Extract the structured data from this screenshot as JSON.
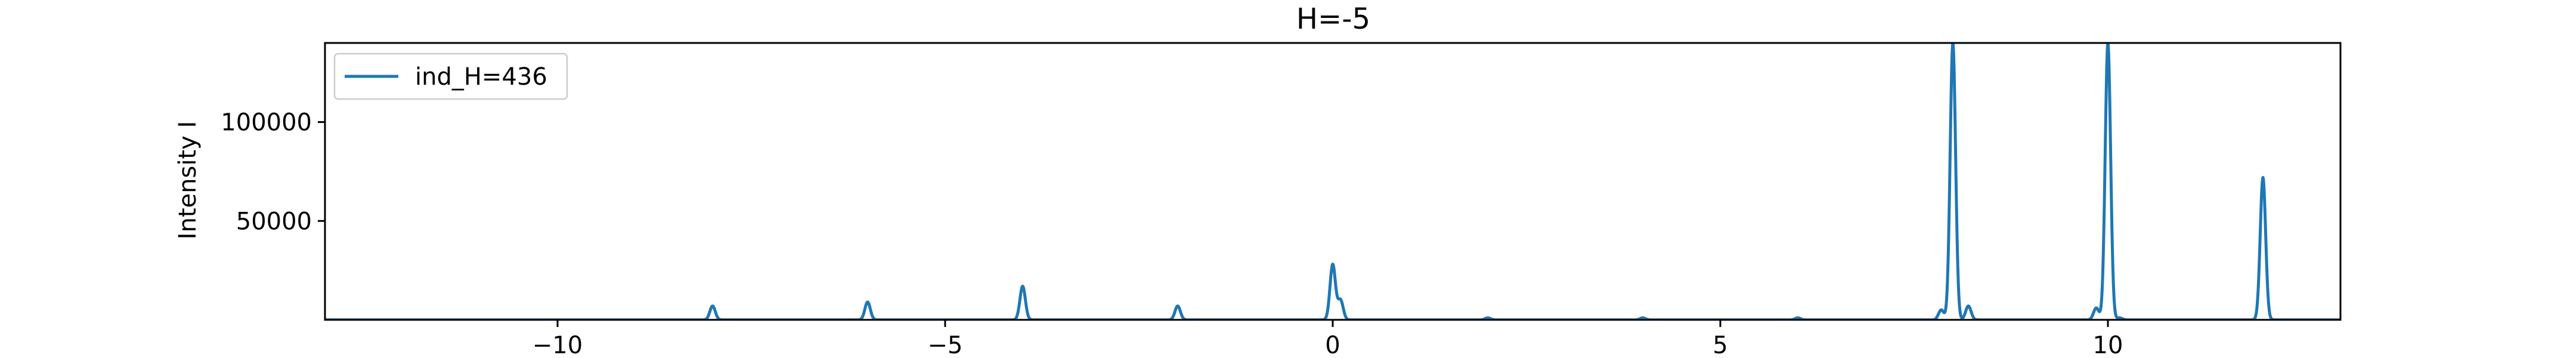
{
  "chart_data": {
    "type": "line",
    "title": "H=-5",
    "xlabel": "",
    "ylabel": "Intensity I",
    "xlim": [
      -13,
      13
    ],
    "ylim": [
      0,
      140000
    ],
    "xticks": [
      -10,
      -5,
      0,
      5,
      10
    ],
    "xtick_labels": [
      "−10",
      "−5",
      "0",
      "5",
      "10"
    ],
    "yticks": [
      50000,
      100000
    ],
    "ytick_labels": [
      "50000",
      "100000"
    ],
    "grid": false,
    "legend_position": "upper-left",
    "color": "#1f77b4",
    "series": [
      {
        "name": "ind_H=436",
        "peaks": [
          {
            "x": -8.0,
            "y": 7000
          },
          {
            "x": -6.0,
            "y": 9000
          },
          {
            "x": -4.0,
            "y": 17000
          },
          {
            "x": -2.0,
            "y": 7000
          },
          {
            "x": 0.0,
            "y": 28000
          },
          {
            "x": 0.1,
            "y": 10000
          },
          {
            "x": 2.0,
            "y": 1000
          },
          {
            "x": 4.0,
            "y": 1000
          },
          {
            "x": 6.0,
            "y": 1000
          },
          {
            "x": 7.85,
            "y": 5000
          },
          {
            "x": 8.0,
            "y": 140000
          },
          {
            "x": 8.2,
            "y": 7000
          },
          {
            "x": 9.85,
            "y": 6000
          },
          {
            "x": 10.0,
            "y": 140000
          },
          {
            "x": 10.15,
            "y": 1000
          },
          {
            "x": 12.0,
            "y": 72000
          }
        ]
      }
    ]
  }
}
